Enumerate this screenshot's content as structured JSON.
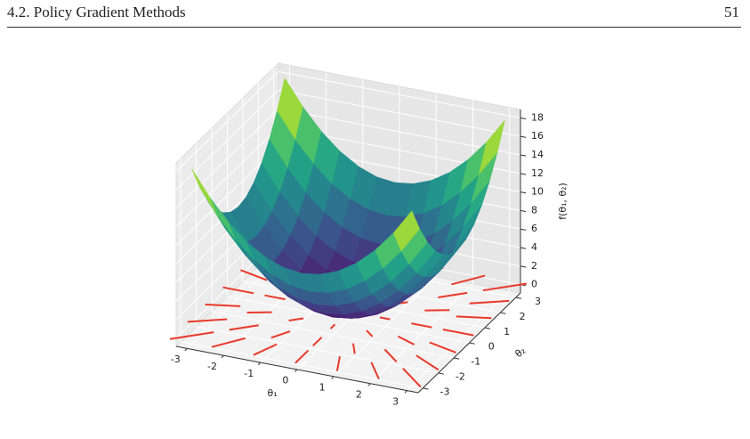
{
  "header": {
    "section": "4.2.  Policy Gradient Methods",
    "page": "51"
  },
  "chart_data": {
    "type": "surface3d",
    "colormap": "viridis",
    "xlabel": "θ₁",
    "ylabel": "θ₂",
    "zlabel": "f(θ₁, θ₂)",
    "xlim": [
      -3.3,
      3.3
    ],
    "ylim": [
      -3.3,
      3.3
    ],
    "zlim": [
      -0.9,
      18.9
    ],
    "xticks": [
      -3,
      -2,
      -1,
      0,
      1,
      2,
      3
    ],
    "yticks": [
      -3,
      -2,
      -1,
      0,
      1,
      2,
      3
    ],
    "zticks": [
      0,
      2,
      4,
      6,
      8,
      10,
      12,
      14,
      16,
      18
    ],
    "surface": {
      "x": [
        -3,
        -2.5,
        -2,
        -1.5,
        -1,
        -0.5,
        0,
        0.5,
        1,
        1.5,
        2,
        2.5,
        3
      ],
      "y": [
        -3,
        -2.5,
        -2,
        -1.5,
        -1,
        -0.5,
        0,
        0.5,
        1,
        1.5,
        2,
        2.5,
        3
      ],
      "z": [
        [
          18,
          15.25,
          13,
          11.25,
          10,
          9.25,
          9,
          9.25,
          10,
          11.25,
          13,
          15.25,
          18
        ],
        [
          15.25,
          12.5,
          10.25,
          8.5,
          7.25,
          6.5,
          6.25,
          6.5,
          7.25,
          8.5,
          10.25,
          12.5,
          15.25
        ],
        [
          13,
          10.25,
          8,
          6.25,
          5,
          4.25,
          4,
          4.25,
          5,
          6.25,
          8,
          10.25,
          13
        ],
        [
          11.25,
          8.5,
          6.25,
          4.5,
          3.25,
          2.5,
          2.25,
          2.5,
          3.25,
          4.5,
          6.25,
          8.5,
          11.25
        ],
        [
          10,
          7.25,
          5,
          3.25,
          2,
          1.25,
          1,
          1.25,
          2,
          3.25,
          5,
          7.25,
          10
        ],
        [
          9.25,
          6.5,
          4.25,
          2.5,
          1.25,
          0.5,
          0.25,
          0.5,
          1.25,
          2.5,
          4.25,
          6.5,
          9.25
        ],
        [
          9,
          6.25,
          4,
          2.25,
          1,
          0.25,
          0,
          0.25,
          1,
          2.25,
          4,
          6.25,
          9
        ],
        [
          9.25,
          6.5,
          4.25,
          2.5,
          1.25,
          0.5,
          0.25,
          0.5,
          1.25,
          2.5,
          4.25,
          6.5,
          9.25
        ],
        [
          10,
          7.25,
          5,
          3.25,
          2,
          1.25,
          1,
          1.25,
          2,
          3.25,
          5,
          7.25,
          10
        ],
        [
          11.25,
          8.5,
          6.25,
          4.5,
          3.25,
          2.5,
          2.25,
          2.5,
          3.25,
          4.5,
          6.25,
          8.5,
          11.25
        ],
        [
          13,
          10.25,
          8,
          6.25,
          5,
          4.25,
          4,
          4.25,
          5,
          6.25,
          8,
          10.25,
          13
        ],
        [
          15.25,
          12.5,
          10.25,
          8.5,
          7.25,
          6.5,
          6.25,
          6.5,
          7.25,
          8.5,
          10.25,
          12.5,
          15.25
        ],
        [
          18,
          15.25,
          13,
          11.25,
          10,
          9.25,
          9,
          9.25,
          10,
          11.25,
          13,
          15.25,
          18
        ]
      ]
    },
    "quiver": {
      "color": "#e8392b",
      "x": [
        -3,
        -2,
        -1,
        0,
        1,
        2,
        3
      ],
      "y": [
        -3,
        -2,
        -1,
        0,
        1,
        2,
        3
      ],
      "u": [
        [
          -6,
          -4,
          -2,
          0,
          2,
          4,
          6
        ],
        [
          -6,
          -4,
          -2,
          0,
          2,
          4,
          6
        ],
        [
          -6,
          -4,
          -2,
          0,
          2,
          4,
          6
        ],
        [
          -6,
          -4,
          -2,
          0,
          2,
          4,
          6
        ],
        [
          -6,
          -4,
          -2,
          0,
          2,
          4,
          6
        ],
        [
          -6,
          -4,
          -2,
          0,
          2,
          4,
          6
        ],
        [
          -6,
          -4,
          -2,
          0,
          2,
          4,
          6
        ]
      ],
      "v": [
        [
          -6,
          -6,
          -6,
          -6,
          -6,
          -6,
          -6
        ],
        [
          -4,
          -4,
          -4,
          -4,
          -4,
          -4,
          -4
        ],
        [
          -2,
          -2,
          -2,
          -2,
          -2,
          -2,
          -2
        ],
        [
          0,
          0,
          0,
          0,
          0,
          0,
          0
        ],
        [
          2,
          2,
          2,
          2,
          2,
          2,
          2
        ],
        [
          4,
          4,
          4,
          4,
          4,
          4,
          4
        ],
        [
          6,
          6,
          6,
          6,
          6,
          6,
          6
        ]
      ]
    }
  }
}
